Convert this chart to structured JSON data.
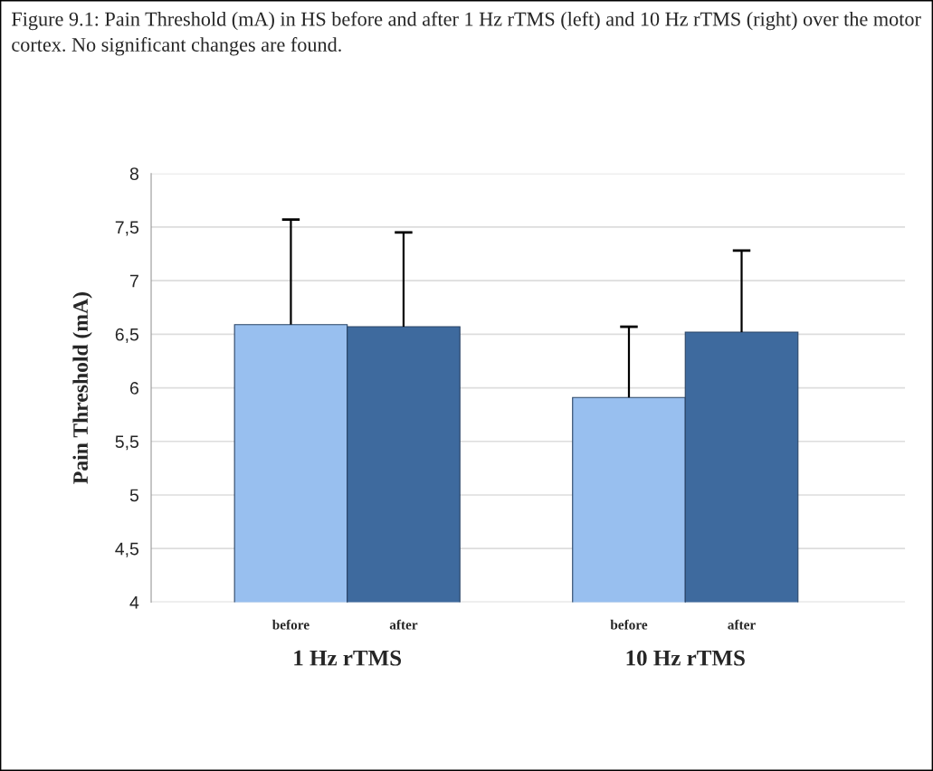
{
  "chart_data": {
    "type": "bar",
    "title": "Figure 9.1: Pain Threshold (mA) in HS before and after 1 Hz rTMS (left) and 10 Hz rTMS (right) over the motor cortex. No significant changes are found.",
    "ylabel": "Pain Threshold (mA)",
    "categories": [
      "before",
      "after",
      "before",
      "after"
    ],
    "values": [
      6.59,
      6.57,
      5.91,
      6.52
    ],
    "errors": [
      [
        6.59,
        7.57
      ],
      [
        6.57,
        7.45
      ],
      [
        5.91,
        6.57
      ],
      [
        6.52,
        7.28
      ]
    ],
    "colors": [
      "#98bfef",
      "#3e6a9e",
      "#98bfef",
      "#3e6a9e"
    ],
    "annotations": [
      "1 Hz rTMS",
      "10 Hz rTMS"
    ],
    "ylim": [
      4,
      8
    ],
    "yticks": [
      4,
      {
        "value": 4.5,
        "label": "4,5"
      },
      5,
      {
        "value": 5.5,
        "label": "5,5"
      },
      6,
      {
        "value": 6.5,
        "label": "6,5"
      },
      7,
      {
        "value": 7.5,
        "label": "7,5"
      },
      8
    ],
    "grid": "y",
    "legend": false
  }
}
